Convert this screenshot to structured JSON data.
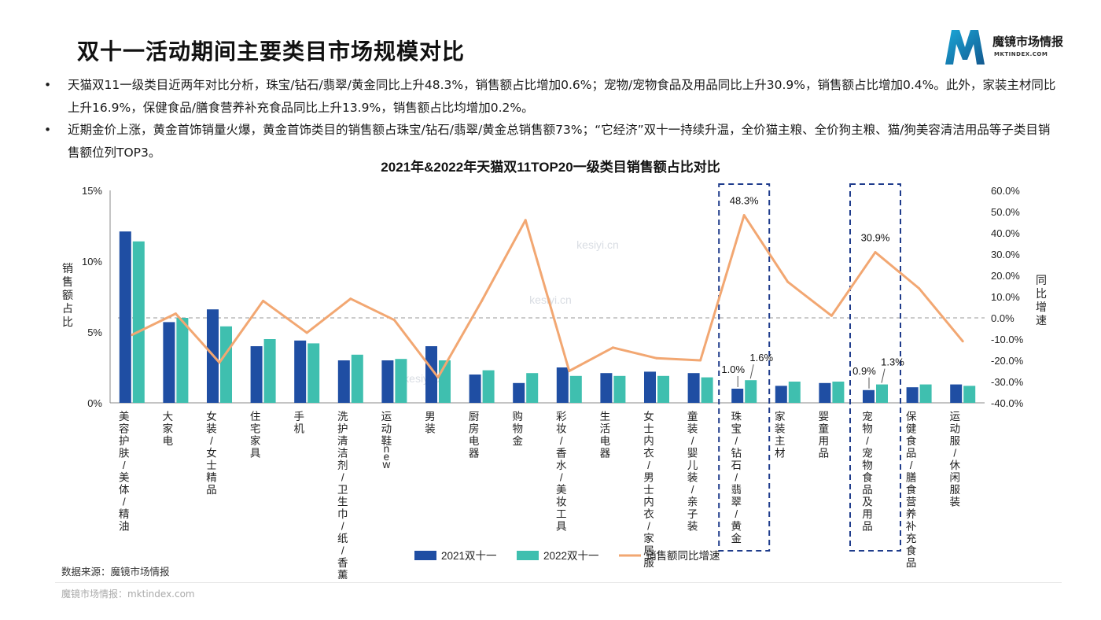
{
  "page": {
    "title": "双十一活动期间主要类目市场规模对比",
    "brand": {
      "name": "魔镜市场情报",
      "url": "MKTINDEX.COM"
    },
    "bullets": [
      "天猫双11一级类目近两年对比分析，珠宝/钻石/翡翠/黄金同比上升48.3%，销售额占比增加0.6%；宠物/宠物食品及用品同比上升30.9%，销售额占比增加0.4%。此外，家装主材同比上升16.9%，保健食品/膳食营养补充食品同比上升13.9%，销售额占比均增加0.2%。",
      "近期金价上涨，黄金首饰销量火爆，黄金首饰类目的销售额占珠宝/钻石/翡翠/黄金总销售额73%；“它经济”双十一持续升温，全价猫主粮、全价狗主粮、猫/狗美容清洁用品等子类目销售额位列TOP3。"
    ],
    "bullet_marker": "•",
    "source": "数据来源：魔镜市场情报",
    "footer": "魔镜市场情报：mktindex.com",
    "watermark": "kesiyi.cn"
  },
  "chart_data": {
    "type": "bar",
    "title": "2021年&2022年天猫双11TOP20一级类目销售额占比对比",
    "ylabel": "销售额占比",
    "y2label": "同比增速",
    "ylim": [
      0,
      15
    ],
    "y2lim": [
      -40,
      60
    ],
    "y_ticks": [
      "0%",
      "5%",
      "10%",
      "15%"
    ],
    "y2_ticks": [
      "-40.0%",
      "-30.0%",
      "-20.0%",
      "-10.0%",
      "0.0%",
      "10.0%",
      "20.0%",
      "30.0%",
      "40.0%",
      "50.0%",
      "60.0%"
    ],
    "categories": [
      "美容护肤/美体/精油",
      "大家电",
      "女装/女士精品",
      "住宅家具",
      "手机",
      "洗护清洁剂/卫生巾/纸/香薰",
      "运动鞋new",
      "男装",
      "厨房电器",
      "购物金",
      "彩妆/香水/美妆工具",
      "生活电器",
      "女士内衣/男士内衣/家居服",
      "童装/婴儿装/亲子装",
      "珠宝/钻石/翡翠/黄金",
      "家装主材",
      "婴童用品",
      "宠物/宠物食品及用品",
      "保健食品/膳食营养补充食品",
      "运动服/休闲服装"
    ],
    "series": [
      {
        "name": "2021双十一",
        "type": "bar",
        "axis": "left",
        "color": "#1f4ea3",
        "values": [
          12.1,
          5.7,
          6.6,
          4.0,
          4.4,
          3.0,
          3.0,
          4.0,
          2.0,
          1.4,
          2.5,
          2.1,
          2.2,
          2.1,
          1.0,
          1.2,
          1.4,
          0.9,
          1.1,
          1.3
        ]
      },
      {
        "name": "2022双十一",
        "type": "bar",
        "axis": "left",
        "color": "#3fbfaf",
        "values": [
          11.4,
          6.0,
          5.4,
          4.5,
          4.2,
          3.4,
          3.1,
          3.0,
          2.3,
          2.1,
          1.9,
          1.9,
          1.9,
          1.8,
          1.6,
          1.5,
          1.5,
          1.3,
          1.3,
          1.2
        ]
      },
      {
        "name": "销售额同比增速",
        "type": "line",
        "axis": "right",
        "color": "#f2a772",
        "values": [
          -8,
          2,
          -21,
          8,
          -7,
          9,
          -1,
          -28,
          8,
          46,
          -25,
          -14,
          -19,
          -20,
          48.3,
          16.9,
          1,
          30.9,
          13.9,
          -11
        ]
      }
    ],
    "annotations": [
      {
        "category": "珠宝/钻石/翡翠/黄金",
        "line_label": "48.3%",
        "bar2021_label": "1.0%",
        "bar2022_label": "1.6%",
        "highlight": true
      },
      {
        "category": "宠物/宠物食品及用品",
        "line_label": "30.9%",
        "bar2021_label": "0.9%",
        "bar2022_label": "1.3%",
        "highlight": true
      }
    ],
    "reference_line": {
      "axis": "right",
      "value": 0,
      "style": "dashed"
    },
    "legend_position": "bottom",
    "grid": false
  }
}
